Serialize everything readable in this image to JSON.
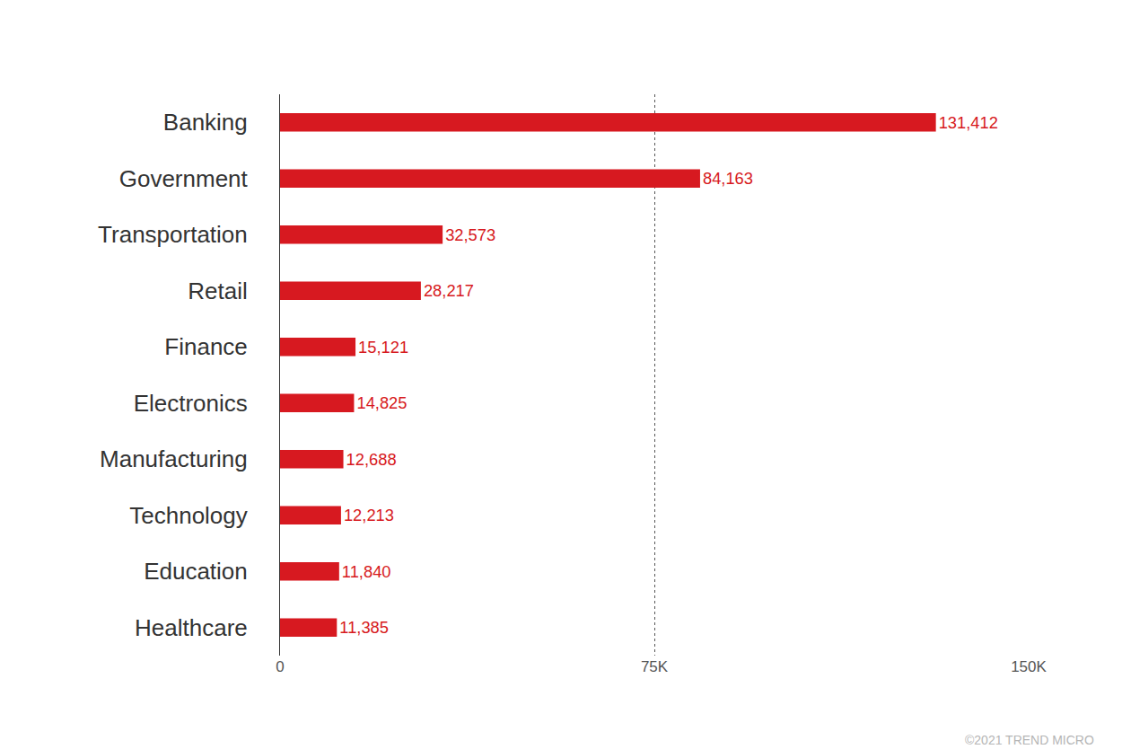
{
  "chart_data": {
    "type": "bar",
    "orientation": "horizontal",
    "categories": [
      "Banking",
      "Government",
      "Transportation",
      "Retail",
      "Finance",
      "Electronics",
      "Manufacturing",
      "Technology",
      "Education",
      "Healthcare"
    ],
    "values": [
      131412,
      84163,
      32573,
      28217,
      15121,
      14825,
      12688,
      12213,
      11840,
      11385
    ],
    "value_labels": [
      "131,412",
      "84,163",
      "32,573",
      "28,217",
      "15,121",
      "14,825",
      "12,688",
      "12,213",
      "11,840",
      "11,385"
    ],
    "data_labels": true,
    "color": "#d71920",
    "xlim": [
      0,
      150000
    ],
    "xticks": [
      0,
      {
        "value": 75000,
        "label": "75K"
      },
      {
        "value": 150000,
        "label": "150K"
      }
    ],
    "grid": true,
    "annotations": [
      "©2021 TREND MICRO"
    ]
  }
}
